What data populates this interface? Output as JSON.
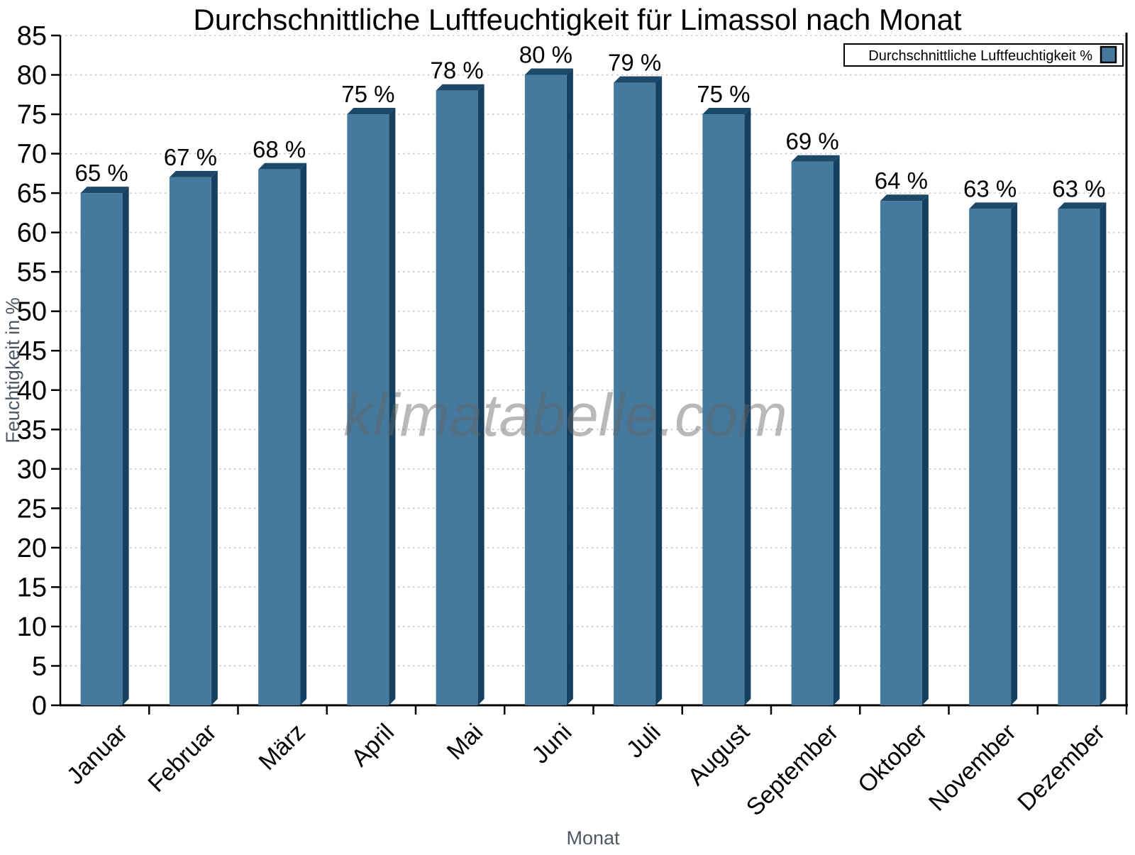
{
  "watermark": "klimatabelle.com",
  "legend": {
    "label": "Durchschnittliche Luftfeuchtigkeit %",
    "swatch_color": "#45799E",
    "swatch_border": "#000000"
  },
  "chart_data": {
    "type": "bar",
    "title": "Durchschnittliche Luftfeuchtigkeit für Limassol nach Monat",
    "categories": [
      "Januar",
      "Februar",
      "März",
      "April",
      "Mai",
      "Juni",
      "Juli",
      "August",
      "September",
      "Oktober",
      "November",
      "Dezember"
    ],
    "series": [
      {
        "name": "Durchschnittliche Luftfeuchtigkeit %",
        "values": [
          65,
          67,
          68,
          75,
          78,
          80,
          79,
          75,
          69,
          64,
          63,
          63
        ]
      }
    ],
    "value_suffix": " %",
    "xlabel": "Monat",
    "ylabel": "Feuchtigkeit in %",
    "ylim": [
      0,
      85
    ],
    "ytick_step": 5,
    "yticks": [
      0,
      5,
      10,
      15,
      20,
      25,
      30,
      35,
      40,
      45,
      50,
      55,
      60,
      65,
      70,
      75,
      80,
      85
    ],
    "grid": "horizontal-dotted",
    "legend_position": "top-right",
    "colors": {
      "bar_front": "#45799E",
      "bar_side": "#16405F",
      "bar_top": "#1B4967",
      "gridline": "#c6c6c6",
      "axis_line": "#000000",
      "tick_text": "#000000",
      "axis_title_text": "#4d5864"
    }
  }
}
